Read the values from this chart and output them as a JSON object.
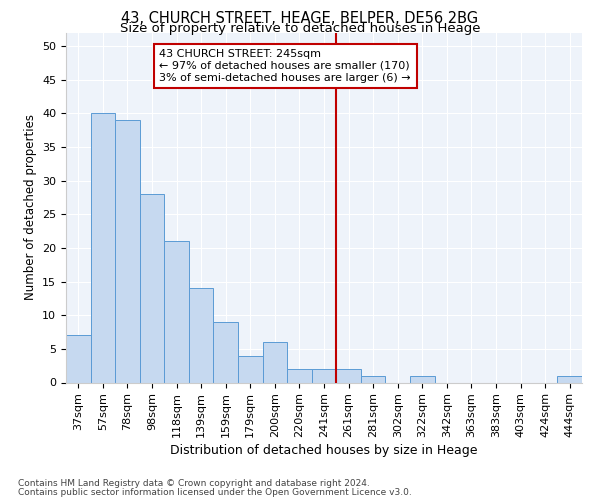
{
  "title1": "43, CHURCH STREET, HEAGE, BELPER, DE56 2BG",
  "title2": "Size of property relative to detached houses in Heage",
  "xlabel": "Distribution of detached houses by size in Heage",
  "ylabel": "Number of detached properties",
  "bar_labels": [
    "37sqm",
    "57sqm",
    "78sqm",
    "98sqm",
    "118sqm",
    "139sqm",
    "159sqm",
    "179sqm",
    "200sqm",
    "220sqm",
    "241sqm",
    "261sqm",
    "281sqm",
    "302sqm",
    "322sqm",
    "342sqm",
    "363sqm",
    "383sqm",
    "403sqm",
    "424sqm",
    "444sqm"
  ],
  "bar_values": [
    7,
    40,
    39,
    28,
    21,
    14,
    9,
    4,
    6,
    2,
    2,
    2,
    1,
    0,
    1,
    0,
    0,
    0,
    0,
    0,
    1
  ],
  "bar_color": "#c6d9f0",
  "bar_edge_color": "#5b9bd5",
  "vline_x": 10.5,
  "vline_color": "#c00000",
  "annotation_text": "43 CHURCH STREET: 245sqm\n← 97% of detached houses are smaller (170)\n3% of semi-detached houses are larger (6) →",
  "annotation_box_color": "#c00000",
  "ylim": [
    0,
    52
  ],
  "yticks": [
    0,
    5,
    10,
    15,
    20,
    25,
    30,
    35,
    40,
    45,
    50
  ],
  "footer1": "Contains HM Land Registry data © Crown copyright and database right 2024.",
  "footer2": "Contains public sector information licensed under the Open Government Licence v3.0.",
  "bg_color": "#eef3fa",
  "grid_color": "#ffffff",
  "title1_fontsize": 10.5,
  "title2_fontsize": 9.5,
  "xlabel_fontsize": 9,
  "ylabel_fontsize": 8.5,
  "tick_fontsize": 8,
  "ann_fontsize": 8,
  "footer_fontsize": 6.5
}
